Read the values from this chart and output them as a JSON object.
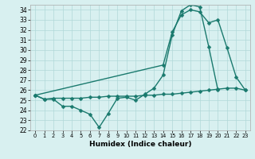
{
  "xlabel": "Humidex (Indice chaleur)",
  "x": [
    0,
    1,
    2,
    3,
    4,
    5,
    6,
    7,
    8,
    9,
    10,
    11,
    12,
    13,
    14,
    15,
    16,
    17,
    18,
    19,
    20,
    21,
    22,
    23
  ],
  "line1_y": [
    25.5,
    25.1,
    25.2,
    25.2,
    25.2,
    25.2,
    25.3,
    25.3,
    25.4,
    25.4,
    25.4,
    25.4,
    25.5,
    25.5,
    25.6,
    25.6,
    25.7,
    25.8,
    25.9,
    26.0,
    26.1,
    26.2,
    26.2,
    26.0
  ],
  "line2_x": [
    0,
    1,
    2,
    3,
    4,
    5,
    6,
    7,
    8,
    9,
    10,
    11,
    12,
    13,
    14,
    15,
    16,
    17,
    18,
    19,
    20
  ],
  "line2_y": [
    25.5,
    25.1,
    25.1,
    24.4,
    24.4,
    24.0,
    23.6,
    22.3,
    23.7,
    25.2,
    25.3,
    25.0,
    25.6,
    26.2,
    27.5,
    31.5,
    33.9,
    34.5,
    34.3,
    30.3,
    26.0
  ],
  "line3_x": [
    0,
    14,
    15,
    16,
    17,
    18,
    19,
    20,
    21,
    22,
    23
  ],
  "line3_y": [
    25.5,
    28.5,
    31.8,
    33.5,
    34.0,
    33.8,
    32.7,
    33.0,
    30.2,
    27.3,
    26.0
  ],
  "color": "#1a7a6e",
  "bg_color": "#d8f0f0",
  "grid_color": "#b0d8d8",
  "ylim": [
    22,
    34.5
  ],
  "yticks": [
    22,
    23,
    24,
    25,
    26,
    27,
    28,
    29,
    30,
    31,
    32,
    33,
    34
  ],
  "markersize": 2.5,
  "linewidth": 1.0
}
